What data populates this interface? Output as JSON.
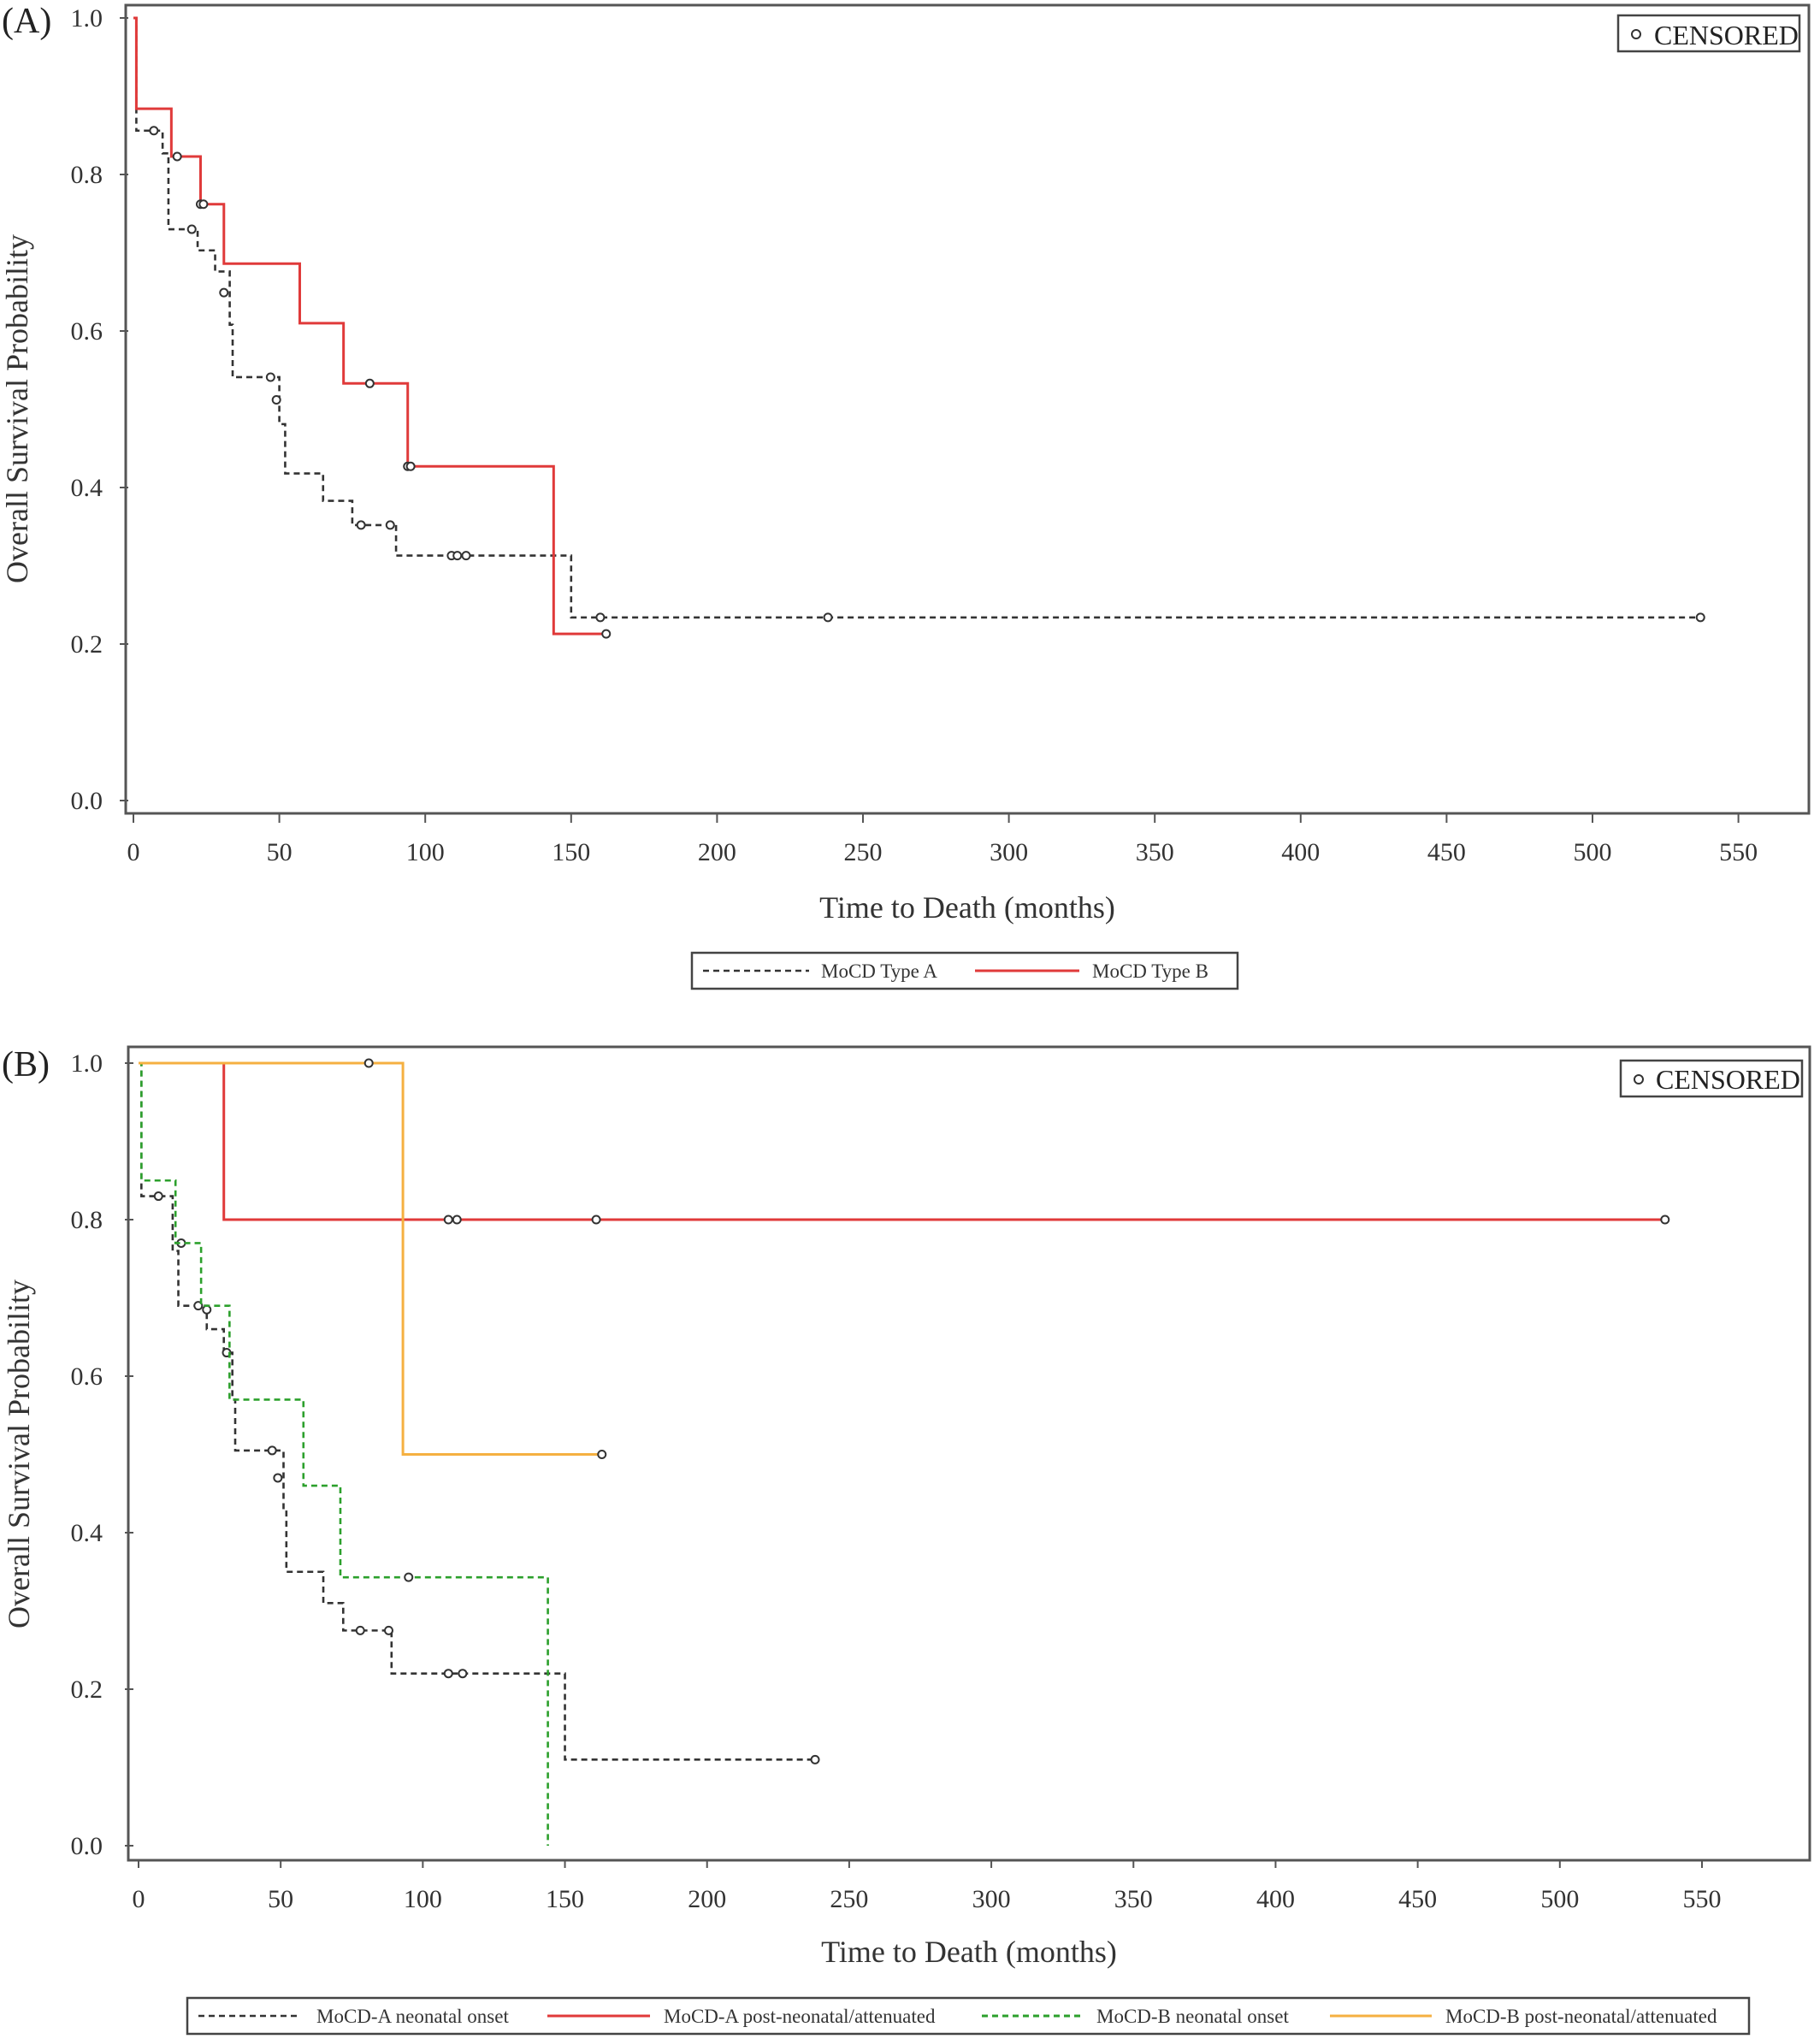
{
  "panels": [
    {
      "label": "(A)",
      "censored_label": "CENSORED",
      "xlabel": "Time to Death (months)",
      "ylabel": "Overall Survival Probability"
    },
    {
      "label": "(B)",
      "censored_label": "CENSORED",
      "xlabel": "Time to Death (months)",
      "ylabel": "Overall Survival Probability"
    }
  ],
  "chart_data": [
    {
      "type": "line",
      "subtype": "kaplan-meier step",
      "xlabel": "Time to Death (months)",
      "ylabel": "Overall Survival Probability",
      "xlim": [
        0,
        555
      ],
      "ylim": [
        0,
        1.0
      ],
      "xticks": [
        0,
        50,
        100,
        150,
        200,
        250,
        300,
        350,
        400,
        450,
        500,
        550
      ],
      "yticks": [
        0.0,
        0.2,
        0.4,
        0.6,
        0.8,
        1.0
      ],
      "ytick_labels": [
        "0.0",
        "0.2",
        "0.4",
        "0.6",
        "0.8",
        "1.0"
      ],
      "legend_position": "bottom",
      "censored_legend_position": "top-right",
      "series": [
        {
          "name": "MoCD Type A",
          "color": "#333333",
          "dash": "dashed",
          "steps": [
            [
              0,
              1.0
            ],
            [
              1,
              0.856
            ],
            [
              10,
              0.827
            ],
            [
              12,
              0.73
            ],
            [
              20,
              0.73
            ],
            [
              22,
              0.703
            ],
            [
              28,
              0.676
            ],
            [
              33,
              0.608
            ],
            [
              34,
              0.541
            ],
            [
              48,
              0.541
            ],
            [
              50,
              0.481
            ],
            [
              52,
              0.418
            ],
            [
              62,
              0.418
            ],
            [
              65,
              0.383
            ],
            [
              72,
              0.383
            ],
            [
              75,
              0.352
            ],
            [
              88,
              0.352
            ],
            [
              90,
              0.313
            ],
            [
              148,
              0.313
            ],
            [
              150,
              0.234
            ],
            [
              537,
              0.234
            ]
          ],
          "censored": [
            [
              7,
              0.856
            ],
            [
              20,
              0.73
            ],
            [
              31,
              0.649
            ],
            [
              47,
              0.541
            ],
            [
              49,
              0.512
            ],
            [
              78,
              0.352
            ],
            [
              88,
              0.352
            ],
            [
              109,
              0.313
            ],
            [
              111,
              0.313
            ],
            [
              114,
              0.313
            ],
            [
              160,
              0.234
            ],
            [
              238,
              0.234
            ],
            [
              537,
              0.234
            ]
          ]
        },
        {
          "name": "MoCD Type B",
          "color": "#e03a3a",
          "dash": "solid",
          "steps": [
            [
              0,
              1.0
            ],
            [
              1,
              0.884
            ],
            [
              12,
              0.884
            ],
            [
              13,
              0.823
            ],
            [
              22,
              0.823
            ],
            [
              23,
              0.762
            ],
            [
              30,
              0.762
            ],
            [
              31,
              0.686
            ],
            [
              56,
              0.686
            ],
            [
              57,
              0.61
            ],
            [
              71,
              0.61
            ],
            [
              72,
              0.533
            ],
            [
              93,
              0.533
            ],
            [
              94,
              0.427
            ],
            [
              143,
              0.427
            ],
            [
              144,
              0.213
            ],
            [
              162,
              0.213
            ]
          ],
          "censored": [
            [
              15,
              0.823
            ],
            [
              23,
              0.762
            ],
            [
              24,
              0.762
            ],
            [
              81,
              0.533
            ],
            [
              94,
              0.427
            ],
            [
              95,
              0.427
            ],
            [
              162,
              0.213
            ]
          ]
        }
      ]
    },
    {
      "type": "line",
      "subtype": "kaplan-meier step",
      "xlabel": "Time to Death (months)",
      "ylabel": "Overall Survival Probability",
      "xlim": [
        0,
        555
      ],
      "ylim": [
        0,
        1.0
      ],
      "xticks": [
        0,
        50,
        100,
        150,
        200,
        250,
        300,
        350,
        400,
        450,
        500,
        550
      ],
      "yticks": [
        0.0,
        0.2,
        0.4,
        0.6,
        0.8,
        1.0
      ],
      "ytick_labels": [
        "0.0",
        "0.2",
        "0.4",
        "0.6",
        "0.8",
        "1.0"
      ],
      "legend_position": "bottom",
      "censored_legend_position": "top-right",
      "series": [
        {
          "name": "MoCD-A neonatal onset",
          "color": "#333333",
          "dash": "dashed",
          "steps": [
            [
              0,
              1.0
            ],
            [
              1,
              0.83
            ],
            [
              10,
              0.83
            ],
            [
              12,
              0.76
            ],
            [
              14,
              0.69
            ],
            [
              20,
              0.69
            ],
            [
              24,
              0.66
            ],
            [
              30,
              0.63
            ],
            [
              33,
              0.57
            ],
            [
              34,
              0.505
            ],
            [
              48,
              0.505
            ],
            [
              51,
              0.43
            ],
            [
              52,
              0.35
            ],
            [
              62,
              0.35
            ],
            [
              65,
              0.31
            ],
            [
              70,
              0.31
            ],
            [
              72,
              0.275
            ],
            [
              87,
              0.275
            ],
            [
              89,
              0.22
            ],
            [
              149,
              0.22
            ],
            [
              150,
              0.11
            ],
            [
              238,
              0.11
            ]
          ],
          "censored": [
            [
              7,
              0.83
            ],
            [
              15,
              0.77
            ],
            [
              21,
              0.69
            ],
            [
              24,
              0.685
            ],
            [
              31,
              0.63
            ],
            [
              47,
              0.505
            ],
            [
              49,
              0.47
            ],
            [
              78,
              0.275
            ],
            [
              88,
              0.275
            ],
            [
              109,
              0.22
            ],
            [
              114,
              0.22
            ],
            [
              238,
              0.11
            ]
          ]
        },
        {
          "name": "MoCD-A post-neonatal/attenuated",
          "color": "#e03a3a",
          "dash": "solid",
          "steps": [
            [
              0,
              1.0
            ],
            [
              29,
              1.0
            ],
            [
              30,
              0.8
            ],
            [
              537,
              0.8
            ]
          ],
          "censored": [
            [
              109,
              0.8
            ],
            [
              112,
              0.8
            ],
            [
              161,
              0.8
            ],
            [
              537,
              0.8
            ]
          ]
        },
        {
          "name": "MoCD-B neonatal onset",
          "color": "#2ca02c",
          "dash": "dashed",
          "steps": [
            [
              0,
              1.0
            ],
            [
              1,
              0.85
            ],
            [
              12,
              0.85
            ],
            [
              13,
              0.77
            ],
            [
              21,
              0.77
            ],
            [
              22,
              0.69
            ],
            [
              31,
              0.69
            ],
            [
              32,
              0.57
            ],
            [
              57,
              0.57
            ],
            [
              58,
              0.46
            ],
            [
              70,
              0.46
            ],
            [
              71,
              0.343
            ],
            [
              143,
              0.343
            ],
            [
              144,
              0.0
            ]
          ],
          "censored": [
            [
              95,
              0.343
            ]
          ]
        },
        {
          "name": "MoCD-B post-neonatal/attenuated",
          "color": "#f5b041",
          "dash": "solid",
          "steps": [
            [
              0,
              1.0
            ],
            [
              92,
              1.0
            ],
            [
              93,
              0.5
            ],
            [
              163,
              0.5
            ]
          ],
          "censored": [
            [
              81,
              1.0
            ],
            [
              163,
              0.5
            ]
          ]
        }
      ]
    }
  ]
}
